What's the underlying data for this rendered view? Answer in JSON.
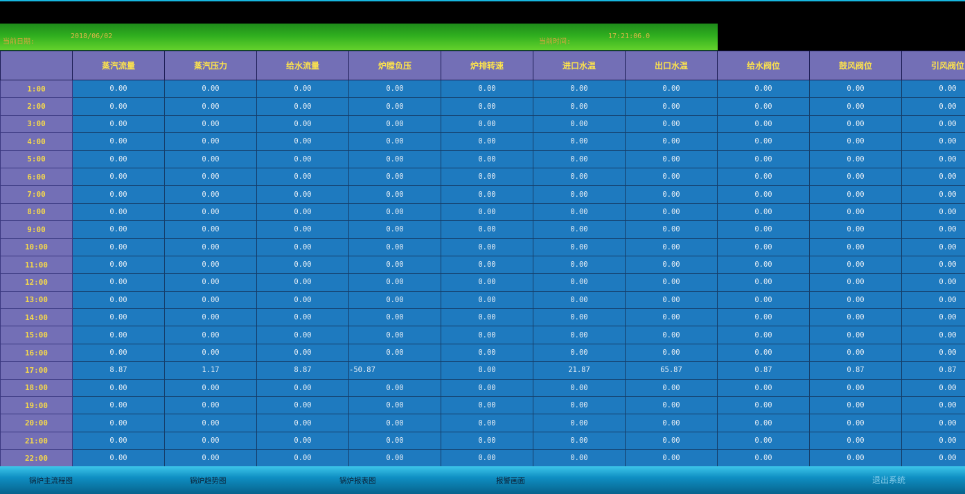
{
  "header": {
    "date_label": "当前日期:",
    "date_value": "2018/06/02",
    "time_label": "当前时间:",
    "time_value": "17:21:06.0"
  },
  "table": {
    "columns": [
      "",
      "蒸汽流量",
      "蒸汽压力",
      "给水流量",
      "炉膛负压",
      "炉排转速",
      "进口水温",
      "出口水温",
      "给水阀位",
      "鼓风阀位",
      "引风阀位"
    ],
    "rows": [
      {
        "hour": "1:00",
        "values": [
          "0.00",
          "0.00",
          "0.00",
          "0.00",
          "0.00",
          "0.00",
          "0.00",
          "0.00",
          "0.00",
          "0.00"
        ]
      },
      {
        "hour": "2:00",
        "values": [
          "0.00",
          "0.00",
          "0.00",
          "0.00",
          "0.00",
          "0.00",
          "0.00",
          "0.00",
          "0.00",
          "0.00"
        ]
      },
      {
        "hour": "3:00",
        "values": [
          "0.00",
          "0.00",
          "0.00",
          "0.00",
          "0.00",
          "0.00",
          "0.00",
          "0.00",
          "0.00",
          "0.00"
        ]
      },
      {
        "hour": "4:00",
        "values": [
          "0.00",
          "0.00",
          "0.00",
          "0.00",
          "0.00",
          "0.00",
          "0.00",
          "0.00",
          "0.00",
          "0.00"
        ]
      },
      {
        "hour": "5:00",
        "values": [
          "0.00",
          "0.00",
          "0.00",
          "0.00",
          "0.00",
          "0.00",
          "0.00",
          "0.00",
          "0.00",
          "0.00"
        ]
      },
      {
        "hour": "6:00",
        "values": [
          "0.00",
          "0.00",
          "0.00",
          "0.00",
          "0.00",
          "0.00",
          "0.00",
          "0.00",
          "0.00",
          "0.00"
        ]
      },
      {
        "hour": "7:00",
        "values": [
          "0.00",
          "0.00",
          "0.00",
          "0.00",
          "0.00",
          "0.00",
          "0.00",
          "0.00",
          "0.00",
          "0.00"
        ]
      },
      {
        "hour": "8:00",
        "values": [
          "0.00",
          "0.00",
          "0.00",
          "0.00",
          "0.00",
          "0.00",
          "0.00",
          "0.00",
          "0.00",
          "0.00"
        ]
      },
      {
        "hour": "9:00",
        "values": [
          "0.00",
          "0.00",
          "0.00",
          "0.00",
          "0.00",
          "0.00",
          "0.00",
          "0.00",
          "0.00",
          "0.00"
        ]
      },
      {
        "hour": "10:00",
        "values": [
          "0.00",
          "0.00",
          "0.00",
          "0.00",
          "0.00",
          "0.00",
          "0.00",
          "0.00",
          "0.00",
          "0.00"
        ]
      },
      {
        "hour": "11:00",
        "values": [
          "0.00",
          "0.00",
          "0.00",
          "0.00",
          "0.00",
          "0.00",
          "0.00",
          "0.00",
          "0.00",
          "0.00"
        ]
      },
      {
        "hour": "12:00",
        "values": [
          "0.00",
          "0.00",
          "0.00",
          "0.00",
          "0.00",
          "0.00",
          "0.00",
          "0.00",
          "0.00",
          "0.00"
        ]
      },
      {
        "hour": "13:00",
        "values": [
          "0.00",
          "0.00",
          "0.00",
          "0.00",
          "0.00",
          "0.00",
          "0.00",
          "0.00",
          "0.00",
          "0.00"
        ]
      },
      {
        "hour": "14:00",
        "values": [
          "0.00",
          "0.00",
          "0.00",
          "0.00",
          "0.00",
          "0.00",
          "0.00",
          "0.00",
          "0.00",
          "0.00"
        ]
      },
      {
        "hour": "15:00",
        "values": [
          "0.00",
          "0.00",
          "0.00",
          "0.00",
          "0.00",
          "0.00",
          "0.00",
          "0.00",
          "0.00",
          "0.00"
        ]
      },
      {
        "hour": "16:00",
        "values": [
          "0.00",
          "0.00",
          "0.00",
          "0.00",
          "0.00",
          "0.00",
          "0.00",
          "0.00",
          "0.00",
          "0.00"
        ]
      },
      {
        "hour": "17:00",
        "values": [
          "8.87",
          "1.17",
          "8.87",
          "-50.87",
          "8.00",
          "21.87",
          "65.87",
          "0.87",
          "0.87",
          "0.87"
        ]
      },
      {
        "hour": "18:00",
        "values": [
          "0.00",
          "0.00",
          "0.00",
          "0.00",
          "0.00",
          "0.00",
          "0.00",
          "0.00",
          "0.00",
          "0.00"
        ]
      },
      {
        "hour": "19:00",
        "values": [
          "0.00",
          "0.00",
          "0.00",
          "0.00",
          "0.00",
          "0.00",
          "0.00",
          "0.00",
          "0.00",
          "0.00"
        ]
      },
      {
        "hour": "20:00",
        "values": [
          "0.00",
          "0.00",
          "0.00",
          "0.00",
          "0.00",
          "0.00",
          "0.00",
          "0.00",
          "0.00",
          "0.00"
        ]
      },
      {
        "hour": "21:00",
        "values": [
          "0.00",
          "0.00",
          "0.00",
          "0.00",
          "0.00",
          "0.00",
          "0.00",
          "0.00",
          "0.00",
          "0.00"
        ]
      },
      {
        "hour": "22:00",
        "values": [
          "0.00",
          "0.00",
          "0.00",
          "0.00",
          "0.00",
          "0.00",
          "0.00",
          "0.00",
          "0.00",
          "0.00"
        ]
      }
    ]
  },
  "footer": {
    "nav": [
      "锅炉主流程图",
      "锅炉趋势图",
      "锅炉报表图",
      "报警画面"
    ],
    "exit_label": "退出系统"
  },
  "colors": {
    "header_bg": "#736fb6",
    "header_text": "#fce24d",
    "cell_bg": "#1e7abf",
    "green_bar": "#2fae1f"
  }
}
